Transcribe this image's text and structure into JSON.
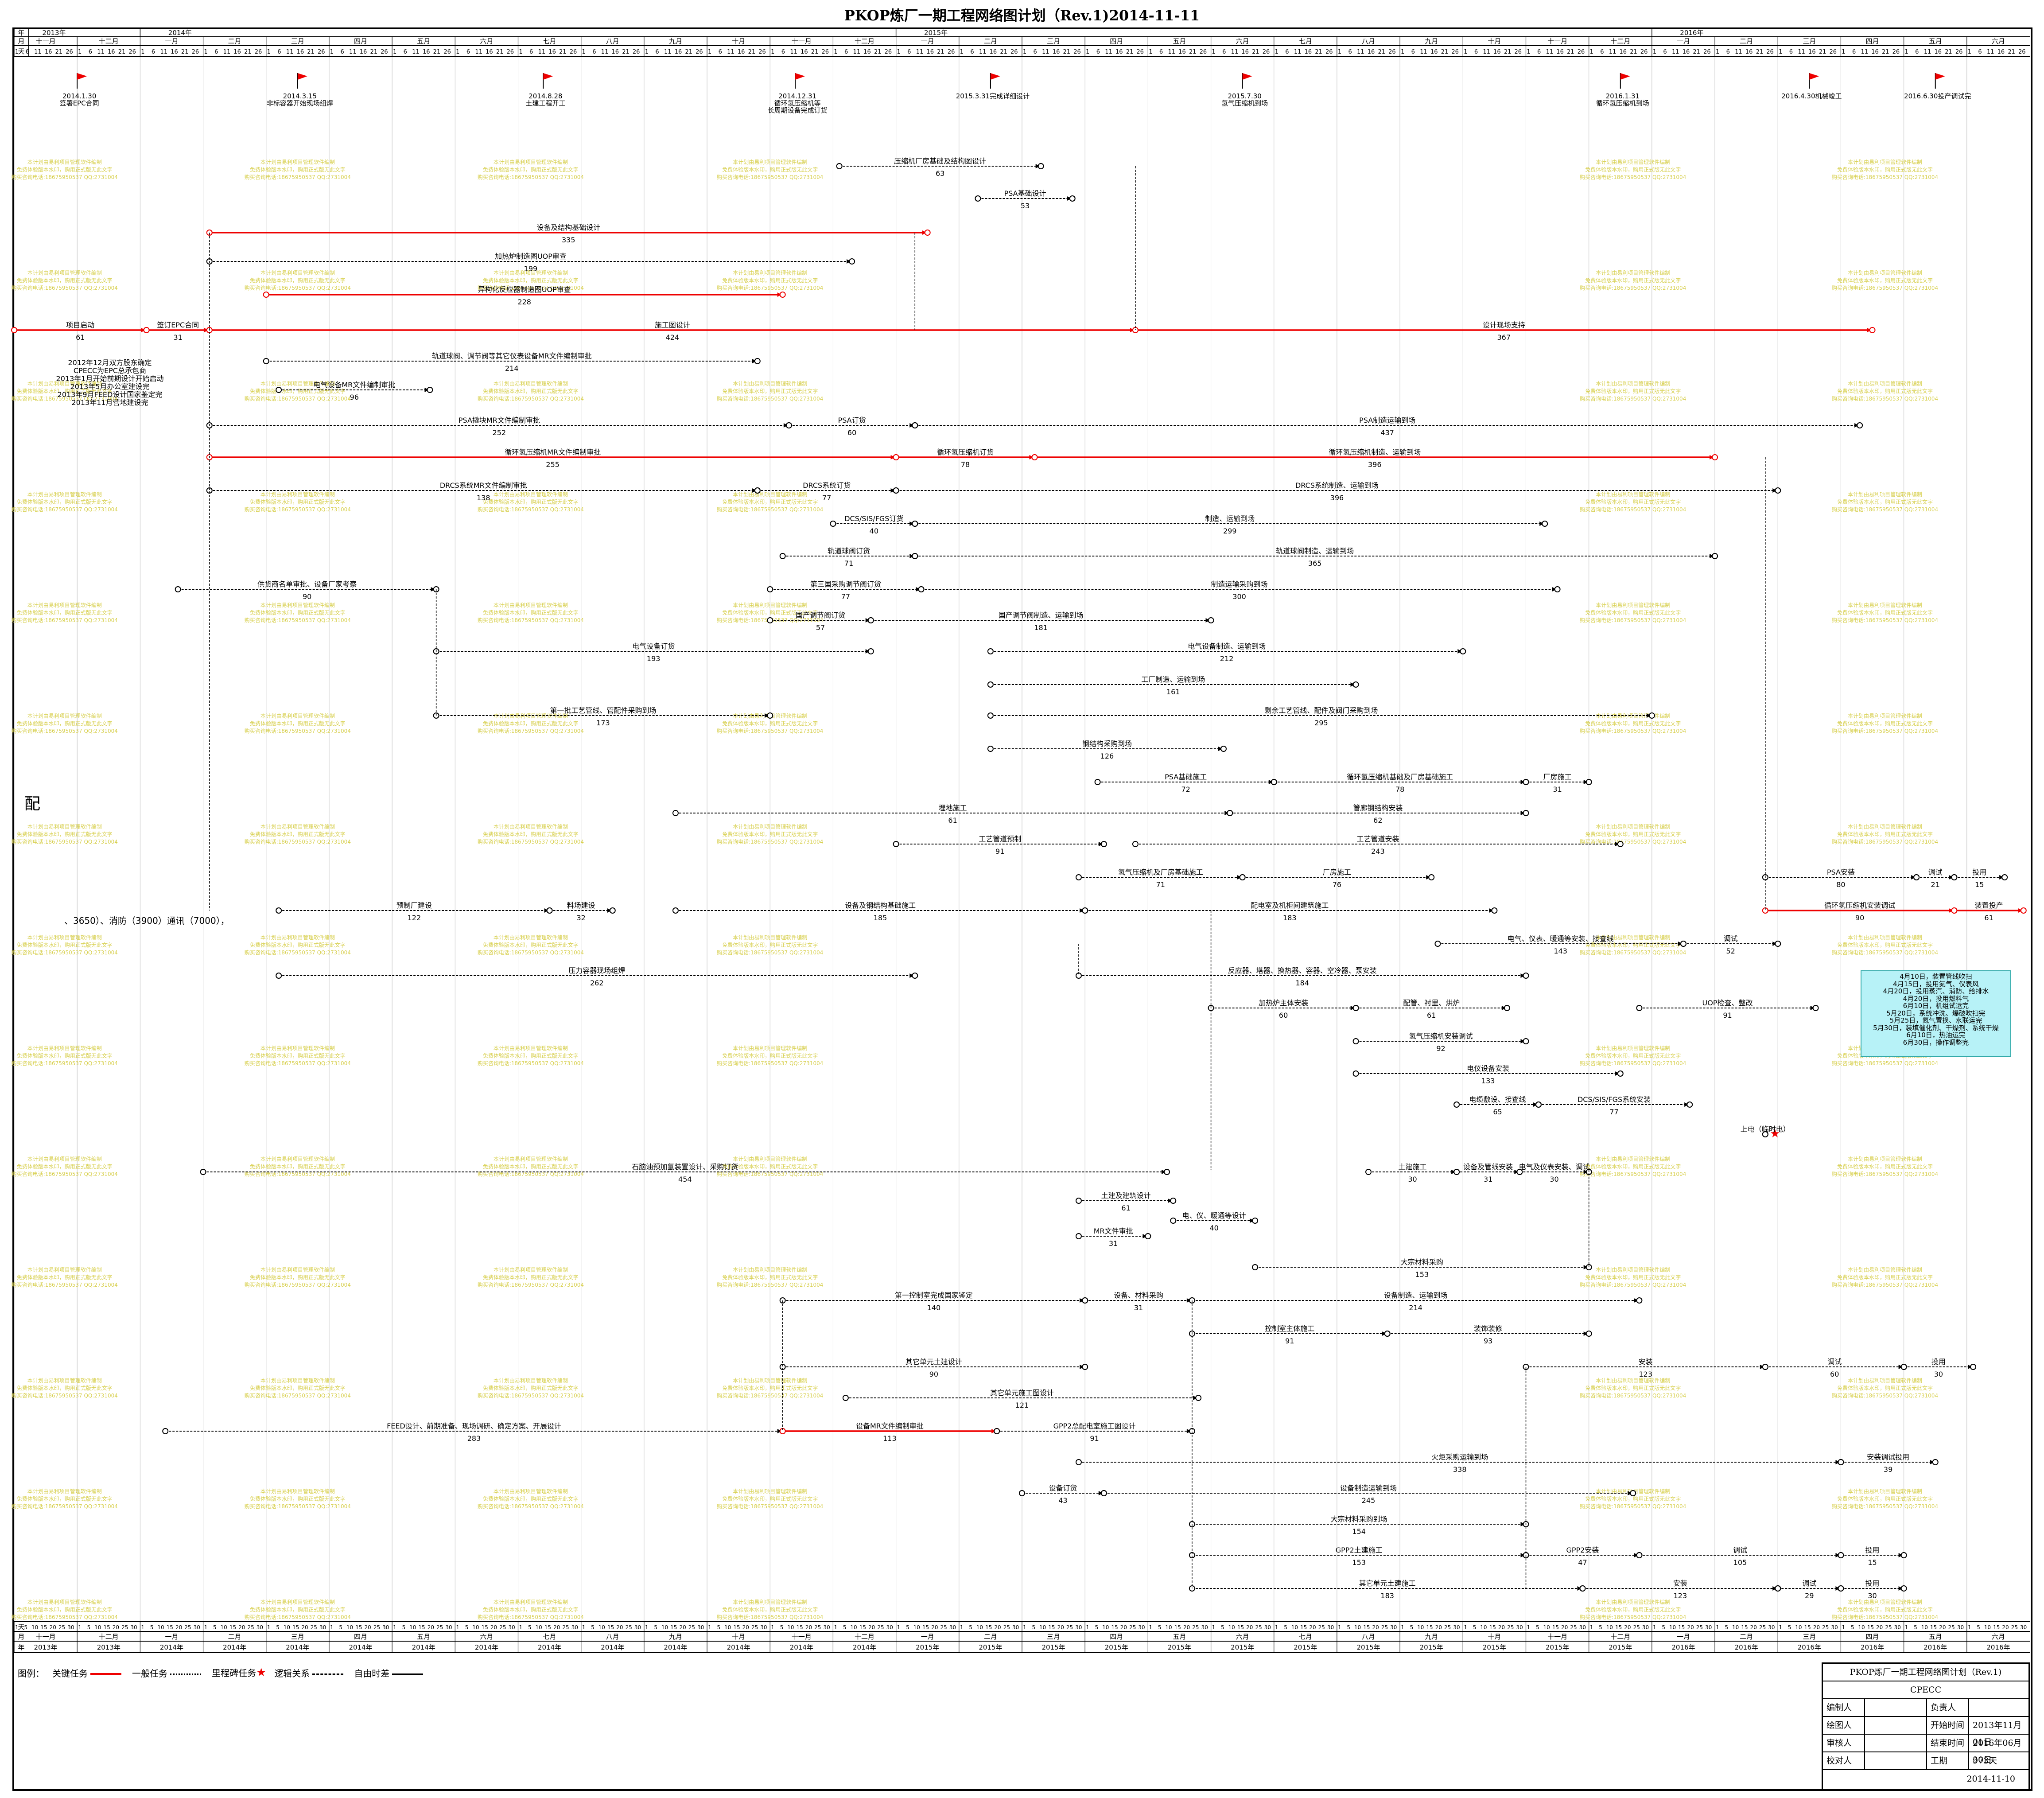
{
  "title": "PKOP炼厂一期工程网络图计划（Rev.1)2014-11-11",
  "header": {
    "row_labels": {
      "year": "年",
      "month": "月",
      "day": "天"
    },
    "years": [
      {
        "label": "2013年",
        "start": 0,
        "end": 2
      },
      {
        "label": "2014年",
        "start": 2,
        "end": 14
      },
      {
        "label": "2015年",
        "start": 14,
        "end": 26
      },
      {
        "label": "2016年",
        "start": 26,
        "end": 32
      }
    ],
    "months": [
      "十一月",
      "十二月",
      "一月",
      "二月",
      "三月",
      "四月",
      "五月",
      "六月",
      "七月",
      "八月",
      "九月",
      "十月",
      "十一月",
      "十二月",
      "一月",
      "二月",
      "三月",
      "四月",
      "五月",
      "六月",
      "七月",
      "八月",
      "九月",
      "十月",
      "十一月",
      "十二月",
      "一月",
      "二月",
      "三月",
      "四月",
      "五月",
      "六月"
    ],
    "bottom_years": [
      "2013年",
      "2013年",
      "2014年",
      "2014年",
      "2014年",
      "2014年",
      "2014年",
      "2014年",
      "2014年",
      "2014年",
      "2014年",
      "2014年",
      "2014年",
      "2014年",
      "2015年",
      "2015年",
      "2015年",
      "2015年",
      "2015年",
      "2015年",
      "2015年",
      "2015年",
      "2015年",
      "2015年",
      "2015年",
      "2015年",
      "2016年",
      "2016年",
      "2016年",
      "2016年",
      "2016年",
      "2016年"
    ],
    "top_days": [
      "1",
      "6",
      "11",
      "16",
      "21",
      "26"
    ],
    "bottom_days": [
      "1",
      "5",
      "10",
      "15",
      "20",
      "25",
      "30"
    ]
  },
  "milestones": [
    {
      "month": 1.0,
      "text": "2014.1.30\n签署EPC合同"
    },
    {
      "month": 4.5,
      "text": "2014.3.15\n非标容器开始现场组焊"
    },
    {
      "month": 8.4,
      "text": "2014.8.28\n土建工程开工"
    },
    {
      "month": 12.4,
      "text": "2014.12.31\n循环氢压缩机等\n长周期设备完成订货"
    },
    {
      "month": 15.5,
      "text": "2015.3.31完成详细设计"
    },
    {
      "month": 19.5,
      "text": "2015.7.30\n氢气压缩机到场"
    },
    {
      "month": 25.5,
      "text": "2016.1.31\n循环氢压缩机到场"
    },
    {
      "month": 28.5,
      "text": "2016.4.30机械竣工"
    },
    {
      "month": 30.5,
      "text": "2016.6.30投产调试完"
    }
  ],
  "side_label": "配",
  "side_note": "2012年12月双方股东确定\nCPECC为EPC总承包商\n2013年1月开始前期设计开始启动\n2013年5月办公室建设完\n2013年9月FEED设计国家鉴定完\n2013年11月营地建设完",
  "left_note": "、3650）、消防（3900）通讯（7000），",
  "activities": [
    {
      "label": "项目启动",
      "dur": "61",
      "crit": true
    },
    {
      "label": "签订EPC合同",
      "dur": "31",
      "crit": true
    },
    {
      "label": "设备及结构基础设计",
      "dur": "335",
      "crit": true
    },
    {
      "label": "加热炉制造图UOP审查",
      "dur": "199"
    },
    {
      "label": "异构化反应器制造图UOP审查",
      "dur": "228",
      "crit": true
    },
    {
      "label": "施工图设计",
      "dur": "424",
      "crit": true
    },
    {
      "label": "设计现场支持",
      "dur": "367",
      "crit": true
    },
    {
      "label": "轨道球阀、调节阀等其它仪表设备MR文件编制审批",
      "dur": "214"
    },
    {
      "label": "电气设备MR文件编制审批",
      "dur": "96"
    },
    {
      "label": "压缩机厂房基础及结构图设计",
      "dur": "63"
    },
    {
      "label": "PSA基础设计",
      "dur": "53"
    },
    {
      "label": "PSA撬块MR文件编制审批",
      "dur": "252"
    },
    {
      "label": "PSA订货",
      "dur": "60"
    },
    {
      "label": "PSA制造运输到场",
      "dur": "437"
    },
    {
      "label": "循环氢压缩机MR文件编制审批",
      "dur": "255",
      "crit": true
    },
    {
      "label": "循环氢压缩机订货",
      "dur": "78",
      "crit": true
    },
    {
      "label": "循环氢压缩机制造、运输到场",
      "dur": "396",
      "crit": true
    },
    {
      "label": "DRCS系统MR文件编制审批",
      "dur": "138"
    },
    {
      "label": "DRCS系统订货",
      "dur": "77"
    },
    {
      "label": "DRCS系统制造、运输到场",
      "dur": "396"
    },
    {
      "label": "DCS/SIS/FGS订货",
      "dur": "40"
    },
    {
      "label": "制造、运输到场",
      "dur": "299"
    },
    {
      "label": "轨道球阀订货",
      "dur": "71"
    },
    {
      "label": "轨道球阀制造、运输到场",
      "dur": "365"
    },
    {
      "label": "供货商名单审批、设备厂家考察",
      "dur": "90"
    },
    {
      "label": "第三国采购调节阀订货",
      "dur": "77"
    },
    {
      "label": "制造运输采购到场",
      "dur": "300"
    },
    {
      "label": "国产调节阀订货",
      "dur": "57"
    },
    {
      "label": "国产调节阀制造、运输到场",
      "dur": "181"
    },
    {
      "label": "电气设备订货",
      "dur": "193"
    },
    {
      "label": "电气设备制造、运输到场",
      "dur": "212"
    },
    {
      "label": "工厂制造、运输到场",
      "dur": "161"
    },
    {
      "label": "第一批工艺管线、管配件采购到场",
      "dur": "173"
    },
    {
      "label": "剩余工艺管线、配件及阀门采购到场",
      "dur": "295"
    },
    {
      "label": "钢结构采购到场",
      "dur": "126"
    },
    {
      "label": "PSA基础施工",
      "dur": "72"
    },
    {
      "label": "循环氢压缩机基础及厂房基础施工",
      "dur": "78"
    },
    {
      "label": "厂房施工",
      "dur": "31"
    },
    {
      "label": "埋地施工",
      "dur": "61"
    },
    {
      "label": "管廊钢结构安装",
      "dur": "62"
    },
    {
      "label": "工艺管道预制",
      "dur": "91"
    },
    {
      "label": "工艺管道安装",
      "dur": "243"
    },
    {
      "label": "氢气压缩机及厂房基础施工",
      "dur": "71"
    },
    {
      "label": "厂房施工",
      "dur": "76"
    },
    {
      "label": "预制厂建设",
      "dur": "122"
    },
    {
      "label": "料场建设",
      "dur": "32"
    },
    {
      "label": "设备及钢结构基础施工",
      "dur": "185"
    },
    {
      "label": "配电室及机柜间建筑施工",
      "dur": "183"
    },
    {
      "label": "PSA安装",
      "dur": "80"
    },
    {
      "label": "调试",
      "dur": "21"
    },
    {
      "label": "投用",
      "dur": "15"
    },
    {
      "label": "循环氢压缩机安装调试",
      "dur": "90",
      "crit": true
    },
    {
      "label": "装置投产",
      "dur": "61",
      "crit": true
    },
    {
      "label": "电气、仪表、暖通等安装、接查线",
      "dur": "143"
    },
    {
      "label": "调试",
      "dur": "52"
    },
    {
      "label": "压力容器现场组焊",
      "dur": "262"
    },
    {
      "label": "反应器、塔器、换热器、容器、空冷器、泵安装",
      "dur": "184"
    },
    {
      "label": "加热炉主体安装",
      "dur": "60"
    },
    {
      "label": "配管、衬里、烘炉",
      "dur": "61"
    },
    {
      "label": "UOP检查、整改",
      "dur": "91"
    },
    {
      "label": "氢气压缩机安装调试",
      "dur": "92"
    },
    {
      "label": "电仪设备安装",
      "dur": "133"
    },
    {
      "label": "电缆敷设、接查线",
      "dur": "65"
    },
    {
      "label": "DCS/SIS/FGS系统安装",
      "dur": "77"
    },
    {
      "label": "上电（临时电）",
      "dur": ""
    },
    {
      "label": "石脑油预加氢装置设计、采购订货",
      "dur": "454"
    },
    {
      "label": "土建施工",
      "dur": "30"
    },
    {
      "label": "设备及管线安装",
      "dur": "31"
    },
    {
      "label": "电气及仪表安装、调试",
      "dur": "30"
    },
    {
      "label": "土建及建筑设计",
      "dur": "61"
    },
    {
      "label": "电、仪、暖通等设计",
      "dur": "40"
    },
    {
      "label": "MR文件审批",
      "dur": "31"
    },
    {
      "label": "大宗材料采购",
      "dur": "153"
    },
    {
      "label": "第一控制室完成国家鉴定",
      "dur": "140"
    },
    {
      "label": "设备、材料采购",
      "dur": "31"
    },
    {
      "label": "设备制造、运输到场",
      "dur": "214"
    },
    {
      "label": "控制室主体施工",
      "dur": "91"
    },
    {
      "label": "装饰装修",
      "dur": "93"
    },
    {
      "label": "其它单元土建设计",
      "dur": "90"
    },
    {
      "label": "其它单元施工图设计",
      "dur": "121"
    },
    {
      "label": "安装",
      "dur": "123"
    },
    {
      "label": "调试",
      "dur": "60"
    },
    {
      "label": "投用",
      "dur": "30"
    },
    {
      "label": "FEED设计、前期准备、现场调研、确定方案、开展设计",
      "dur": "283"
    },
    {
      "label": "设备MR文件编制审批",
      "dur": "113",
      "crit": true
    },
    {
      "label": "GPP2总配电室施工图设计",
      "dur": "91"
    },
    {
      "label": "火炬采购运输到场",
      "dur": "338"
    },
    {
      "label": "安装调试投用",
      "dur": "39"
    },
    {
      "label": "设备订货",
      "dur": "43"
    },
    {
      "label": "设备制造运输到场",
      "dur": "245"
    },
    {
      "label": "大宗材料采购到场",
      "dur": "154"
    },
    {
      "label": "GPP2土建施工",
      "dur": "153"
    },
    {
      "label": "GPP2安装",
      "dur": "47"
    },
    {
      "label": "调试",
      "dur": "105"
    },
    {
      "label": "投用",
      "dur": "15"
    },
    {
      "label": "其它单元土建施工",
      "dur": "183"
    },
    {
      "label": "安装",
      "dur": "123"
    },
    {
      "label": "调试",
      "dur": "29"
    },
    {
      "label": "投用",
      "dur": "30"
    }
  ],
  "remark": "4月10日，装置管线吹扫\n4月15日，投用氮气、仪表风\n4月20日，投用蒸汽、消防、给排水\n4月20日，投用燃料气\n6月10日，机组试运完\n5月20日，系统冲洗、爆破吹扫完\n5月25日，氮气置换、水联运完\n5月30日，装填催化剂、干燥剂、系统干燥\n6月10日，热油运完\n6月30日，操作调整完",
  "legend": {
    "prefix": "图例：",
    "items": [
      "关键任务",
      "一般任务",
      "里程碑任务",
      "逻辑关系",
      "自由时差"
    ]
  },
  "title_block": {
    "name": "PKOP炼厂一期工程网络图计划（Rev.1)",
    "org": "CPECC",
    "rows": [
      [
        "编制人",
        "",
        "负责人",
        ""
      ],
      [
        "绘图人",
        "",
        "开始时间",
        "2013年11月01日"
      ],
      [
        "审核人",
        "",
        "结束时间",
        "2016年06月30日"
      ],
      [
        "校对人",
        "",
        "工期",
        "973天"
      ]
    ],
    "date": "2014-11-10"
  },
  "watermark": {
    "lines": [
      "本计划由易利项目管理软件编制",
      "免费体验版本水印，购用正式版无此文字",
      "购买咨询电话:18675950537 QQ:2731004"
    ],
    "color": "#d8d050"
  }
}
